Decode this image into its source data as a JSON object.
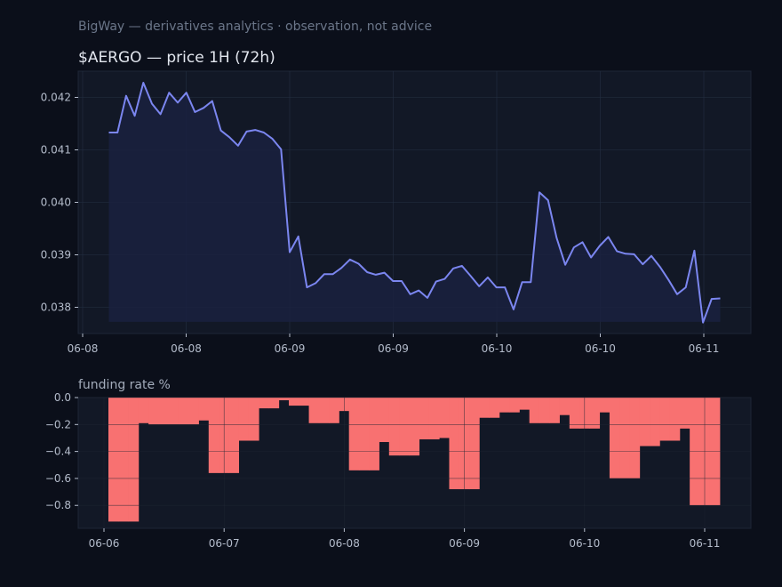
{
  "header": {
    "subtitle": "BigWay — derivatives analytics · observation, not advice"
  },
  "colors": {
    "background": "#0b0f1a",
    "panel": "#121826",
    "grid": "#243042",
    "tick_text": "#b4bccb",
    "subtitle_text": "#6b7689",
    "title_text": "#e2e6ee",
    "price_line": "#7b86f0",
    "price_fill": "#1a2140",
    "funding_bar": "#f87171"
  },
  "chart_data": [
    {
      "type": "line",
      "title": "$AERGO — price 1H (72h)",
      "xlabel": "",
      "ylabel": "",
      "grid": true,
      "legend": "none",
      "x_tick_labels": [
        "06-08",
        "06-08",
        "06-09",
        "06-09",
        "06-10",
        "06-10",
        "06-11"
      ],
      "y_ticks": [
        0.038,
        0.039,
        0.04,
        0.041,
        0.042
      ],
      "y_tick_labels": [
        "0.038",
        "0.039",
        "0.040",
        "0.041",
        "0.042"
      ],
      "ylim": [
        0.0375,
        0.0425
      ],
      "series": [
        {
          "values": [
            0.04133,
            0.04133,
            0.04203,
            0.04165,
            0.04228,
            0.04188,
            0.04168,
            0.04209,
            0.0419,
            0.04209,
            0.04172,
            0.0418,
            0.04193,
            0.04137,
            0.04124,
            0.04108,
            0.04135,
            0.04138,
            0.04133,
            0.04121,
            0.04101,
            0.03905,
            0.03935,
            0.03838,
            0.03846,
            0.03863,
            0.03863,
            0.03875,
            0.03891,
            0.03883,
            0.03867,
            0.03862,
            0.03866,
            0.0385,
            0.0385,
            0.03825,
            0.03832,
            0.03818,
            0.03849,
            0.03854,
            0.03874,
            0.03879,
            0.0386,
            0.0384,
            0.03857,
            0.03838,
            0.03838,
            0.03796,
            0.03848,
            0.03848,
            0.04019,
            0.04004,
            0.03932,
            0.03881,
            0.03914,
            0.03924,
            0.03895,
            0.03917,
            0.03934,
            0.03907,
            0.03902,
            0.03901,
            0.03882,
            0.03898,
            0.03877,
            0.03852,
            0.03825,
            0.03838,
            0.03908,
            0.03771,
            0.03816,
            0.03817
          ]
        }
      ]
    },
    {
      "type": "bar",
      "title": "funding rate %",
      "xlabel": "",
      "ylabel": "",
      "grid": true,
      "legend": "none",
      "x_tick_labels": [
        "06-06",
        "06-07",
        "06-08",
        "06-09",
        "06-10",
        "06-11"
      ],
      "y_ticks": [
        0,
        -0.2,
        -0.4,
        -0.6,
        -0.8
      ],
      "y_tick_labels": [
        "0.0",
        "−0.2",
        "−0.4",
        "−0.6",
        "−0.8"
      ],
      "ylim": [
        -0.97,
        0
      ],
      "values": [
        -0.92,
        -0.92,
        -0.92,
        -0.19,
        -0.2,
        -0.2,
        -0.2,
        -0.2,
        -0.2,
        -0.17,
        -0.56,
        -0.56,
        -0.56,
        -0.32,
        -0.32,
        -0.08,
        -0.08,
        -0.02,
        -0.06,
        -0.06,
        -0.19,
        -0.19,
        -0.19,
        -0.1,
        -0.54,
        -0.54,
        -0.54,
        -0.33,
        -0.43,
        -0.43,
        -0.43,
        -0.31,
        -0.31,
        -0.3,
        -0.68,
        -0.68,
        -0.68,
        -0.15,
        -0.15,
        -0.11,
        -0.11,
        -0.09,
        -0.19,
        -0.19,
        -0.19,
        -0.13,
        -0.23,
        -0.23,
        -0.23,
        -0.11,
        -0.6,
        -0.6,
        -0.6,
        -0.36,
        -0.36,
        -0.32,
        -0.32,
        -0.23,
        -0.8,
        -0.8,
        -0.8
      ]
    }
  ]
}
